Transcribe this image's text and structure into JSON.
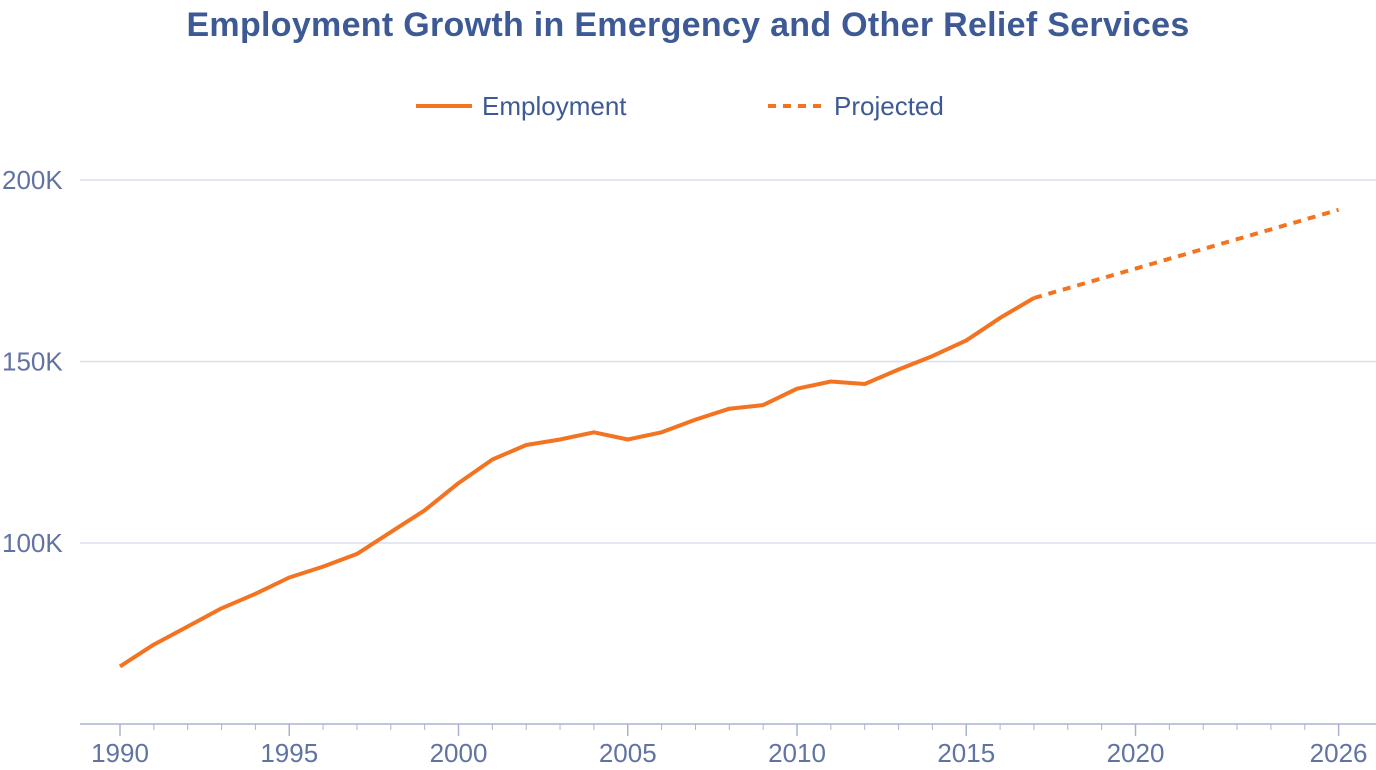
{
  "chart_data": {
    "type": "line",
    "title": "Employment Growth in Emergency and Other Relief Services",
    "xlabel": "",
    "ylabel": "",
    "xlim": [
      1989.2,
      2027.3
    ],
    "ylim": [
      45000,
      210000
    ],
    "x_ticks": [
      1990,
      1995,
      2000,
      2005,
      2010,
      2015,
      2020,
      2026
    ],
    "x_tick_labels": [
      "1990",
      "1995",
      "2000",
      "2005",
      "2010",
      "2015",
      "2020",
      "2026"
    ],
    "y_ticks": [
      100000,
      150000,
      200000
    ],
    "y_tick_labels": [
      "100K",
      "150K",
      "200K"
    ],
    "grid": "horizontal",
    "legend_position": "top-center",
    "series": [
      {
        "name": "Employment",
        "style": "solid",
        "color": "#f47321",
        "x": [
          1990,
          1991,
          1992,
          1993,
          1994,
          1995,
          1996,
          1997,
          1998,
          1999,
          2000,
          2001,
          2002,
          2003,
          2004,
          2005,
          2006,
          2007,
          2008,
          2009,
          2010,
          2011,
          2012,
          2013,
          2014,
          2015,
          2016,
          2017
        ],
        "values": [
          66000,
          72000,
          77000,
          82000,
          86000,
          90500,
          93500,
          97000,
          103000,
          109000,
          116500,
          123000,
          127000,
          128500,
          130500,
          128500,
          130500,
          134000,
          137000,
          138000,
          142500,
          144500,
          143800,
          147800,
          151500,
          155800,
          162000,
          167500
        ]
      },
      {
        "name": "Projected",
        "style": "dashed",
        "color": "#f47321",
        "x": [
          2017,
          2026
        ],
        "values": [
          167500,
          191800
        ]
      }
    ]
  },
  "colors": {
    "line": "#f47321",
    "title": "#3e5a96",
    "tick_text": "#6173a3",
    "grid": "#d9dfee",
    "axis": "#a9b3cf"
  }
}
